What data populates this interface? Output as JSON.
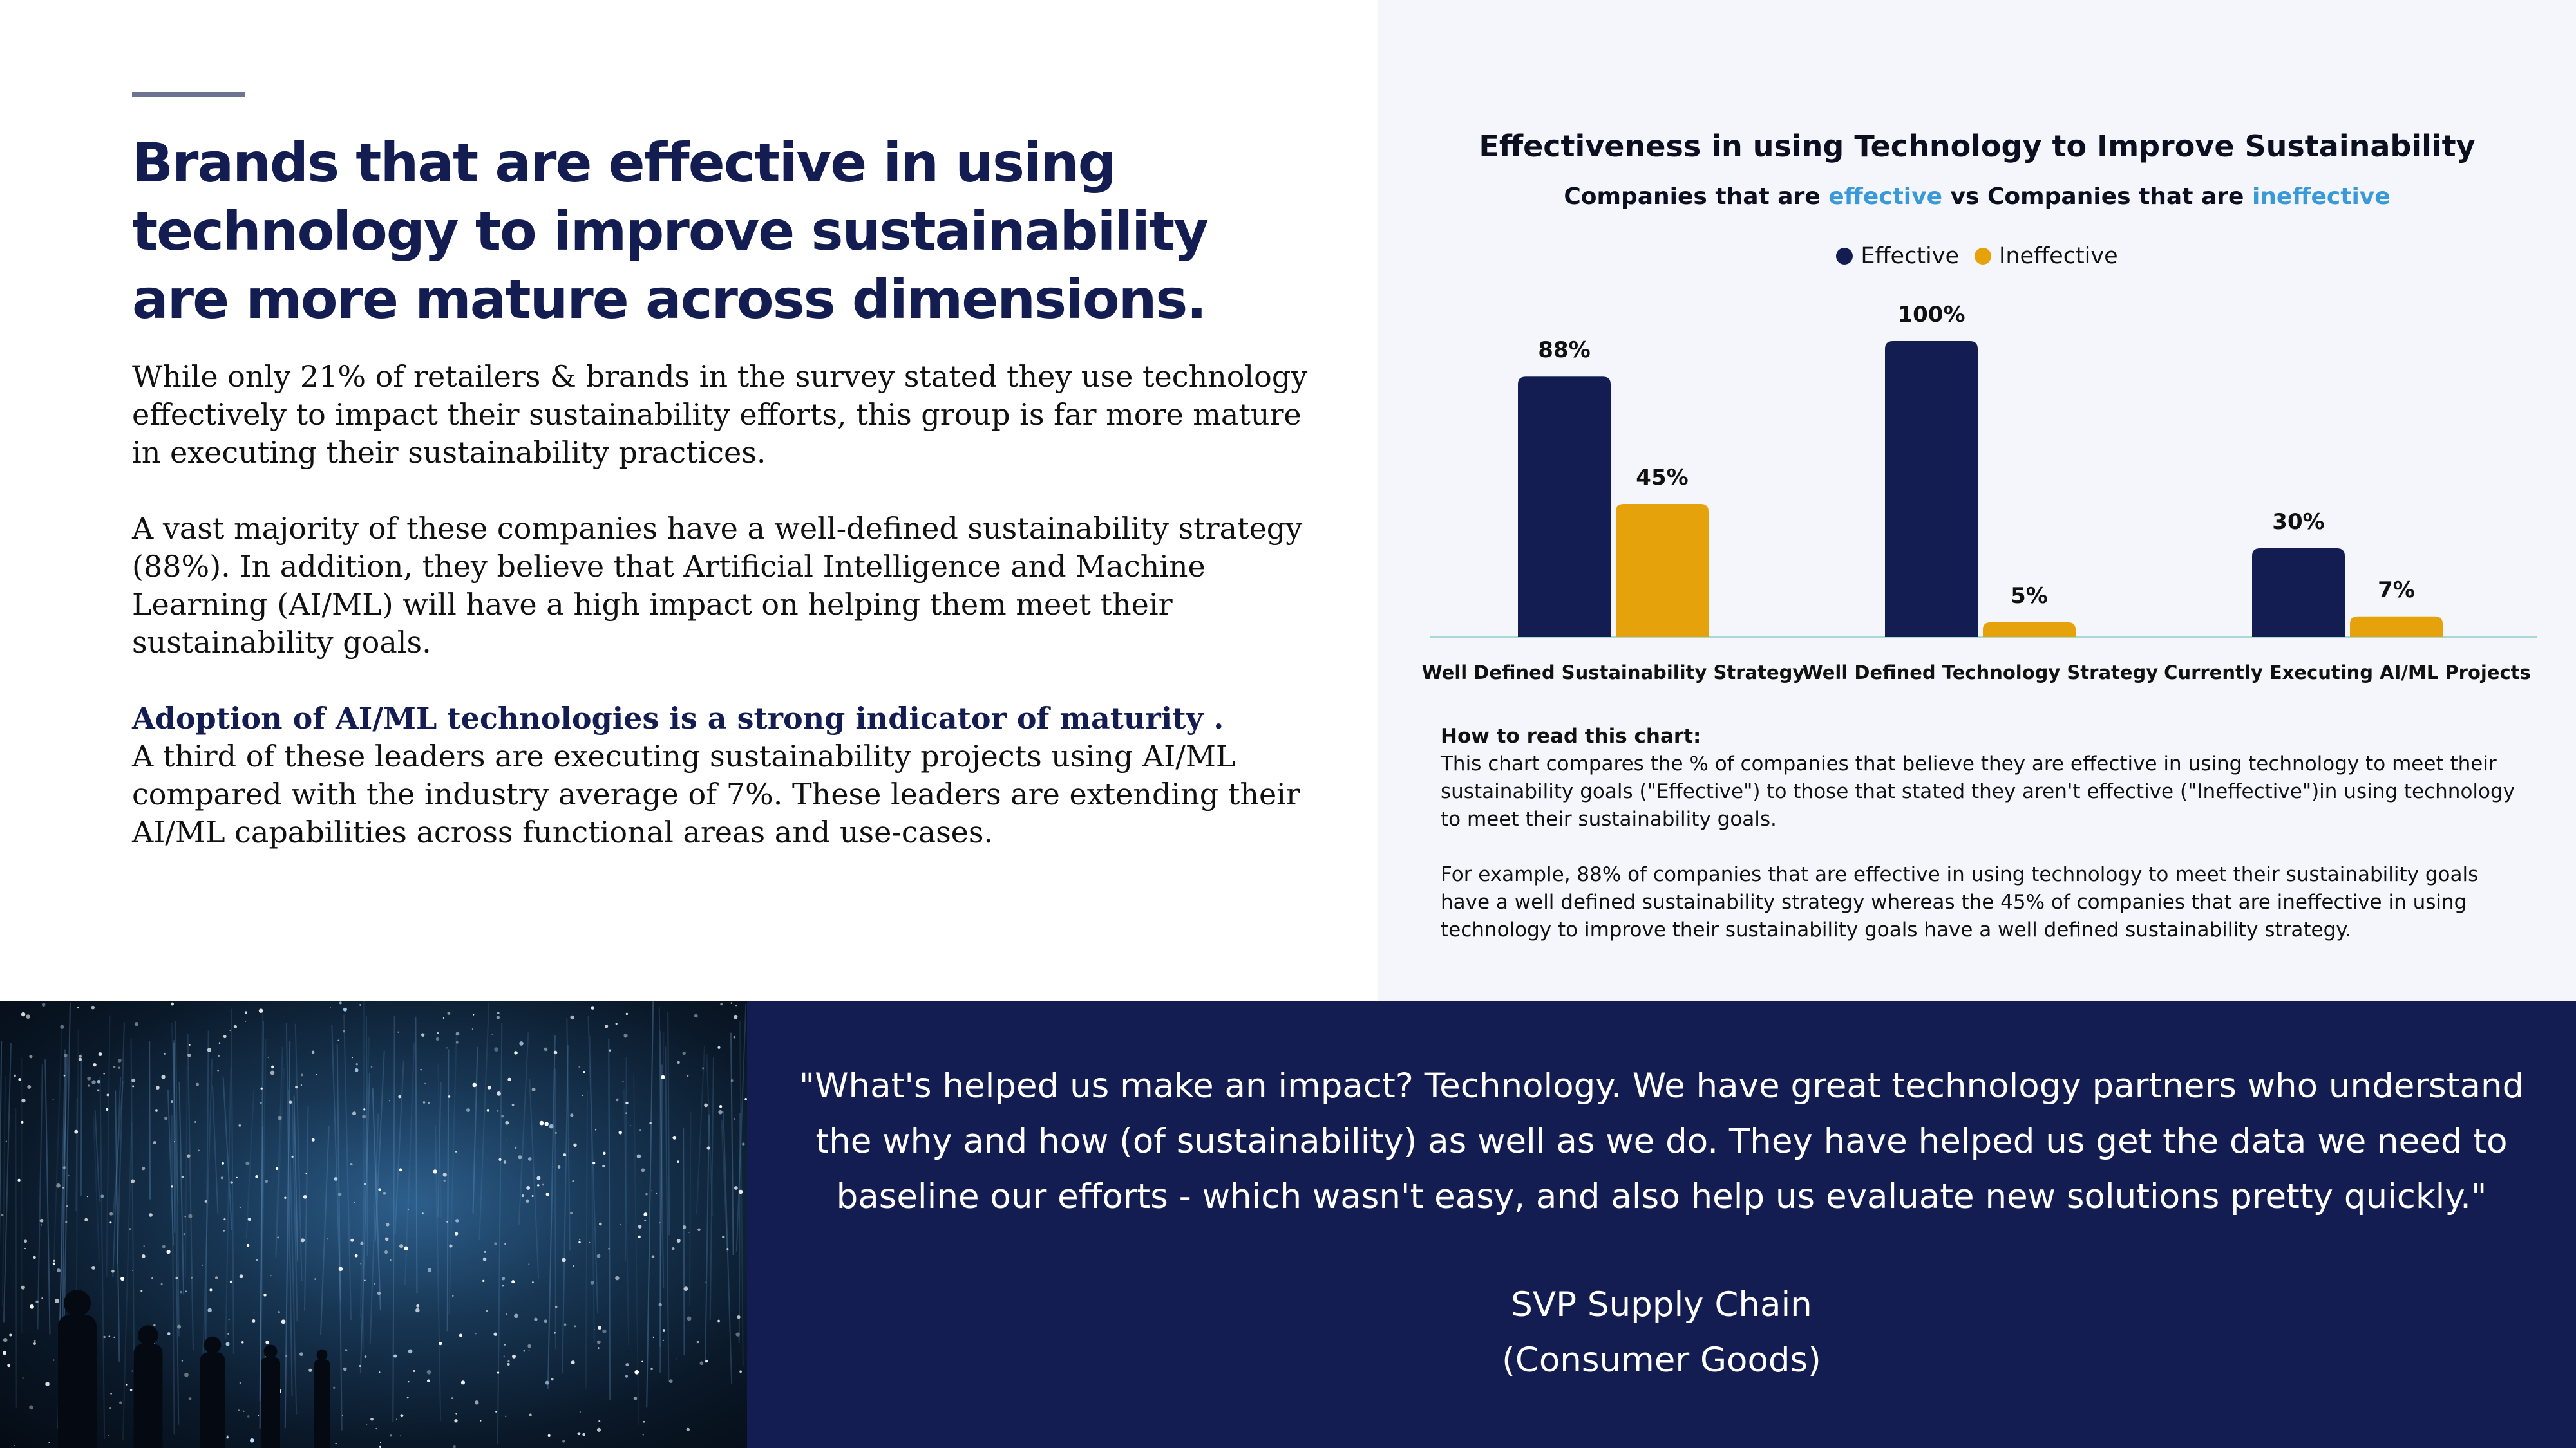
{
  "headline": "Brands that are effective in using technology to improve sustainability are more mature across dimensions.",
  "body": {
    "p1": "While only 21% of retailers & brands in the survey stated they use technology effectively to impact their sustainability efforts, this group is far more mature in executing their sustainability practices.",
    "p2": "A vast majority of these companies have a well-defined sustainability strategy (88%).  In addition, they believe that Artificial Intelligence and Machine Learning (AI/ML) will have a high impact on helping them meet their sustainability goals.",
    "p3_lead": "Adoption of AI/ML technologies is a strong indicator of maturity .",
    "p3": "A third of these leaders are executing sustainability projects using AI/ML compared with the industry average of 7%. These leaders are extending their AI/ML capabilities across functional areas and use-cases."
  },
  "chart_subtitle": {
    "part1": "Companies that are ",
    "effective": "effective",
    "part2": " vs Companies that are ",
    "ineffective": "ineffective"
  },
  "colors": {
    "effective": "#141d52",
    "ineffective": "#e6a20a",
    "highlight": "#3a9ad9",
    "axis": "#a9d9d6"
  },
  "chart_data": {
    "type": "bar",
    "title": "Effectiveness in using Technology to Improve Sustainability",
    "categories": [
      "Well Defined Sustainability Strategy",
      "Well Defined Technology Strategy",
      "Currently Executing AI/ML Projects"
    ],
    "series": [
      {
        "name": "Effective",
        "values": [
          88,
          100,
          30
        ],
        "labels": [
          "88%",
          "100%",
          "30%"
        ]
      },
      {
        "name": "Ineffective",
        "values": [
          45,
          5,
          7
        ],
        "labels": [
          "45%",
          "5%",
          "7%"
        ]
      }
    ],
    "ylim": [
      0,
      100
    ],
    "grid": false,
    "legend": "top-center"
  },
  "how_to_read": {
    "title": "How to read this chart:",
    "p1": "This chart compares the % of companies that believe they are effective in using technology to meet their sustainability goals (\"Effective\") to those that stated they aren't effective (\"Ineffective\")in using technology to meet their sustainability goals.",
    "p2": "For example, 88% of companies that are effective in using technology to meet their sustainability goals have a well defined sustainability strategy whereas the 45% of companies that are ineffective in using technology to improve their sustainability goals have a well defined sustainability strategy."
  },
  "quote": {
    "text": "\"What's helped us make an impact? Technology. We have great technology partners who understand the why and how (of sustainability) as well as we do. They have helped us get the data we need to baseline our efforts - which wasn't easy, and also help us evaluate new solutions pretty quickly.\"",
    "attribution_title": "SVP Supply Chain",
    "attribution_org": "(Consumer Goods)"
  }
}
